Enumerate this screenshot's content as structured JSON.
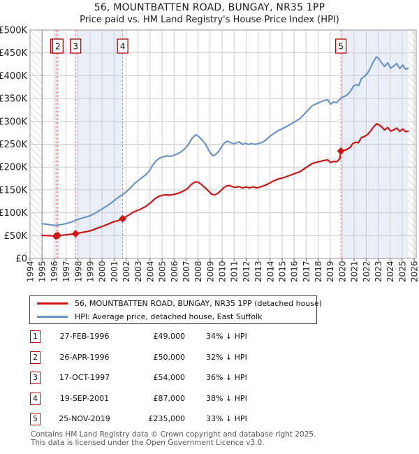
{
  "header": {
    "title": "56, MOUNTBATTEN ROAD, BUNGAY, NR35 1PP",
    "subtitle": "Price paid vs. HM Land Registry's House Price Index (HPI)"
  },
  "legend": {
    "entries": [
      {
        "label": "56, MOUNTBATTEN ROAD, BUNGAY, NR35 1PP (detached house)",
        "color": "#cc1616"
      },
      {
        "label": "HPI: Average price, detached house, East Suffolk",
        "color": "#6b94c6"
      }
    ]
  },
  "table": {
    "rows": [
      {
        "num": "1",
        "date": "27-FEB-1996",
        "price": "£49,000",
        "vs_hpi": "34% ↓ HPI"
      },
      {
        "num": "2",
        "date": "26-APR-1996",
        "price": "£50,000",
        "vs_hpi": "32% ↓ HPI"
      },
      {
        "num": "3",
        "date": "17-OCT-1997",
        "price": "£54,000",
        "vs_hpi": "36% ↓ HPI"
      },
      {
        "num": "4",
        "date": "19-SEP-2001",
        "price": "£87,000",
        "vs_hpi": "38% ↓ HPI"
      },
      {
        "num": "5",
        "date": "25-NOV-2019",
        "price": "£235,000",
        "vs_hpi": "33% ↓ HPI"
      }
    ]
  },
  "footer": {
    "line1": "Contains HM Land Registry data © Crown copyright and database right 2025.",
    "line2": "This data is licensed under the Open Government Licence v3.0."
  },
  "chart_data": {
    "type": "line",
    "title": "56, MOUNTBATTEN ROAD, BUNGAY, NR35 1PP",
    "subtitle": "Price paid vs. HM Land Registry's House Price Index (HPI)",
    "x_range": [
      1994,
      2026.17
    ],
    "y_range": [
      0,
      500000
    ],
    "data_range": [
      1995.0,
      2025.5
    ],
    "grid": true,
    "legend_position": "below",
    "x_ticks": [
      1994,
      1995,
      1996,
      1997,
      1998,
      1999,
      2000,
      2001,
      2002,
      2003,
      2004,
      2005,
      2006,
      2007,
      2008,
      2009,
      2010,
      2011,
      2012,
      2013,
      2014,
      2015,
      2016,
      2017,
      2018,
      2019,
      2020,
      2021,
      2022,
      2023,
      2024,
      2025,
      2026
    ],
    "y_ticks": [
      {
        "label": "£0",
        "value": 0
      },
      {
        "label": "£50K",
        "value": 50000
      },
      {
        "label": "£100K",
        "value": 100000
      },
      {
        "label": "£150K",
        "value": 150000
      },
      {
        "label": "£200K",
        "value": 200000
      },
      {
        "label": "£250K",
        "value": 250000
      },
      {
        "label": "£300K",
        "value": 300000
      },
      {
        "label": "£350K",
        "value": 350000
      },
      {
        "label": "£400K",
        "value": 400000
      },
      {
        "label": "£450K",
        "value": 450000
      },
      {
        "label": "£500K",
        "value": 500000
      }
    ],
    "ownership_bands": [
      [
        1996.159,
        1996.318
      ],
      [
        1997.794,
        2001.718
      ],
      [
        2019.899,
        2025.5
      ]
    ],
    "band_color": "#e9eef8",
    "sale_markers": [
      {
        "num": "1",
        "x": 1996.159,
        "price": 49000
      },
      {
        "num": "2",
        "x": 1996.318,
        "price": 50000
      },
      {
        "num": "3",
        "x": 1997.794,
        "price": 54000
      },
      {
        "num": "4",
        "x": 2001.718,
        "price": 87000
      },
      {
        "num": "5",
        "x": 2019.899,
        "price": 235000
      }
    ],
    "series": [
      {
        "name": "HPI: Average price, detached house, East Suffolk",
        "color": "#6b94c6",
        "points": [
          [
            1995.0,
            76000
          ],
          [
            1995.3,
            75000
          ],
          [
            1995.6,
            74000
          ],
          [
            1995.9,
            72800
          ],
          [
            1996.15,
            72300
          ],
          [
            1996.4,
            73200
          ],
          [
            1996.7,
            74600
          ],
          [
            1997.0,
            76200
          ],
          [
            1997.3,
            78400
          ],
          [
            1997.6,
            81000
          ],
          [
            1997.9,
            84600
          ],
          [
            1998.2,
            87100
          ],
          [
            1998.5,
            89400
          ],
          [
            1998.8,
            91600
          ],
          [
            1999.1,
            94600
          ],
          [
            1999.4,
            98600
          ],
          [
            1999.7,
            103600
          ],
          [
            2000.0,
            108200
          ],
          [
            2000.3,
            113200
          ],
          [
            2000.6,
            118700
          ],
          [
            2000.9,
            124200
          ],
          [
            2001.2,
            130700
          ],
          [
            2001.5,
            136200
          ],
          [
            2001.8,
            141200
          ],
          [
            2002.1,
            147700
          ],
          [
            2002.4,
            155700
          ],
          [
            2002.7,
            163700
          ],
          [
            2003.0,
            170200
          ],
          [
            2003.3,
            176700
          ],
          [
            2003.6,
            182200
          ],
          [
            2003.9,
            190200
          ],
          [
            2004.2,
            203200
          ],
          [
            2004.5,
            213700
          ],
          [
            2004.8,
            219700
          ],
          [
            2005.1,
            222700
          ],
          [
            2005.4,
            224400
          ],
          [
            2005.7,
            223300
          ],
          [
            2006.0,
            226100
          ],
          [
            2006.3,
            229100
          ],
          [
            2006.6,
            233700
          ],
          [
            2006.9,
            240200
          ],
          [
            2007.2,
            249700
          ],
          [
            2007.5,
            263200
          ],
          [
            2007.8,
            270600
          ],
          [
            2008.05,
            267000
          ],
          [
            2008.3,
            260200
          ],
          [
            2008.6,
            251200
          ],
          [
            2008.9,
            236200
          ],
          [
            2009.2,
            225100
          ],
          [
            2009.45,
            227200
          ],
          [
            2009.7,
            233700
          ],
          [
            2009.95,
            243700
          ],
          [
            2010.2,
            252700
          ],
          [
            2010.45,
            256700
          ],
          [
            2010.7,
            253700
          ],
          [
            2010.95,
            250700
          ],
          [
            2011.2,
            252700
          ],
          [
            2011.45,
            255200
          ],
          [
            2011.7,
            249200
          ],
          [
            2011.95,
            252200
          ],
          [
            2012.2,
            249200
          ],
          [
            2012.45,
            251700
          ],
          [
            2012.7,
            249700
          ],
          [
            2012.95,
            250700
          ],
          [
            2013.2,
            252700
          ],
          [
            2013.45,
            255700
          ],
          [
            2013.7,
            260200
          ],
          [
            2014.0,
            267700
          ],
          [
            2014.35,
            274200
          ],
          [
            2014.7,
            280200
          ],
          [
            2015.0,
            283700
          ],
          [
            2015.5,
            290700
          ],
          [
            2016.0,
            298200
          ],
          [
            2016.5,
            306200
          ],
          [
            2017.0,
            320200
          ],
          [
            2017.5,
            334200
          ],
          [
            2018.0,
            340200
          ],
          [
            2018.5,
            345700
          ],
          [
            2018.8,
            347200
          ],
          [
            2019.05,
            337700
          ],
          [
            2019.3,
            342700
          ],
          [
            2019.55,
            340700
          ],
          [
            2019.8,
            348200
          ],
          [
            2019.95,
            351700
          ],
          [
            2020.2,
            354700
          ],
          [
            2020.45,
            358700
          ],
          [
            2020.7,
            366200
          ],
          [
            2020.95,
            377200
          ],
          [
            2021.2,
            380200
          ],
          [
            2021.4,
            378700
          ],
          [
            2021.6,
            393200
          ],
          [
            2021.85,
            398700
          ],
          [
            2022.1,
            404700
          ],
          [
            2022.35,
            416700
          ],
          [
            2022.6,
            430200
          ],
          [
            2022.85,
            441200
          ],
          [
            2023.05,
            437700
          ],
          [
            2023.3,
            427700
          ],
          [
            2023.55,
            420200
          ],
          [
            2023.8,
            428200
          ],
          [
            2024.05,
            416200
          ],
          [
            2024.3,
            421200
          ],
          [
            2024.55,
            426700
          ],
          [
            2024.8,
            415700
          ],
          [
            2025.05,
            423200
          ],
          [
            2025.3,
            414200
          ],
          [
            2025.5,
            416200
          ]
        ]
      },
      {
        "name": "56, MOUNTBATTEN ROAD, BUNGAY, NR35 1PP (detached house)",
        "color": "#cc1616",
        "points": [
          [
            1995.0,
            50500
          ],
          [
            1995.3,
            50200
          ],
          [
            1995.6,
            49800
          ],
          [
            1995.9,
            49200
          ],
          [
            1996.159,
            49000
          ],
          [
            1996.318,
            50000
          ],
          [
            1996.65,
            50600
          ],
          [
            1997.0,
            51700
          ],
          [
            1997.4,
            53000
          ],
          [
            1997.794,
            54000
          ],
          [
            1998.1,
            55800
          ],
          [
            1998.4,
            57200
          ],
          [
            1998.7,
            58600
          ],
          [
            1999.0,
            60400
          ],
          [
            1999.3,
            63000
          ],
          [
            1999.6,
            66200
          ],
          [
            1999.9,
            68800
          ],
          [
            2000.2,
            72000
          ],
          [
            2000.5,
            75300
          ],
          [
            2000.8,
            78600
          ],
          [
            2001.1,
            81200
          ],
          [
            2001.4,
            83400
          ],
          [
            2001.718,
            87000
          ],
          [
            2002.0,
            91500
          ],
          [
            2002.3,
            96200
          ],
          [
            2002.6,
            101200
          ],
          [
            2002.9,
            104600
          ],
          [
            2003.2,
            107600
          ],
          [
            2003.5,
            111800
          ],
          [
            2003.8,
            116600
          ],
          [
            2004.1,
            123200
          ],
          [
            2004.4,
            130600
          ],
          [
            2004.7,
            135600
          ],
          [
            2005.0,
            138000
          ],
          [
            2005.3,
            139300
          ],
          [
            2005.6,
            138600
          ],
          [
            2005.9,
            139800
          ],
          [
            2006.2,
            141500
          ],
          [
            2006.5,
            144200
          ],
          [
            2006.8,
            147900
          ],
          [
            2007.1,
            152600
          ],
          [
            2007.4,
            161000
          ],
          [
            2007.7,
            166800
          ],
          [
            2007.95,
            167800
          ],
          [
            2008.2,
            163400
          ],
          [
            2008.5,
            156600
          ],
          [
            2008.8,
            149400
          ],
          [
            2009.1,
            141000
          ],
          [
            2009.35,
            139200
          ],
          [
            2009.6,
            141600
          ],
          [
            2009.85,
            147200
          ],
          [
            2010.1,
            154200
          ],
          [
            2010.4,
            159000
          ],
          [
            2010.65,
            159700
          ],
          [
            2010.9,
            156400
          ],
          [
            2011.15,
            155600
          ],
          [
            2011.4,
            157300
          ],
          [
            2011.7,
            154300
          ],
          [
            2012.0,
            156400
          ],
          [
            2012.3,
            154500
          ],
          [
            2012.6,
            156700
          ],
          [
            2012.9,
            154300
          ],
          [
            2013.2,
            156500
          ],
          [
            2013.5,
            159300
          ],
          [
            2013.8,
            162600
          ],
          [
            2014.1,
            167100
          ],
          [
            2014.4,
            171000
          ],
          [
            2014.7,
            174100
          ],
          [
            2015.0,
            175900
          ],
          [
            2015.5,
            180400
          ],
          [
            2016.0,
            185300
          ],
          [
            2016.5,
            190100
          ],
          [
            2017.0,
            199100
          ],
          [
            2017.5,
            207600
          ],
          [
            2018.0,
            211400
          ],
          [
            2018.5,
            214600
          ],
          [
            2018.8,
            215700
          ],
          [
            2019.05,
            209600
          ],
          [
            2019.3,
            212600
          ],
          [
            2019.55,
            211400
          ],
          [
            2019.8,
            217600
          ],
          [
            2019.899,
            235000
          ],
          [
            2020.15,
            236600
          ],
          [
            2020.4,
            238700
          ],
          [
            2020.65,
            242700
          ],
          [
            2020.9,
            251700
          ],
          [
            2021.15,
            254600
          ],
          [
            2021.35,
            253100
          ],
          [
            2021.6,
            264600
          ],
          [
            2021.85,
            266700
          ],
          [
            2022.1,
            271100
          ],
          [
            2022.35,
            278200
          ],
          [
            2022.6,
            287200
          ],
          [
            2022.85,
            294700
          ],
          [
            2023.05,
            293100
          ],
          [
            2023.3,
            287600
          ],
          [
            2023.55,
            281100
          ],
          [
            2023.8,
            286600
          ],
          [
            2024.05,
            278600
          ],
          [
            2024.3,
            281300
          ],
          [
            2024.55,
            285300
          ],
          [
            2024.8,
            277900
          ],
          [
            2025.05,
            283300
          ],
          [
            2025.3,
            277300
          ],
          [
            2025.5,
            278600
          ]
        ]
      }
    ],
    "colors": {
      "grid": "#cbcbcb",
      "plot_border": "#9a9a9a",
      "sale_dashed_line": "#e26868",
      "sale_box_border": "#bb0000",
      "hatch": "#b8b8b8"
    }
  }
}
